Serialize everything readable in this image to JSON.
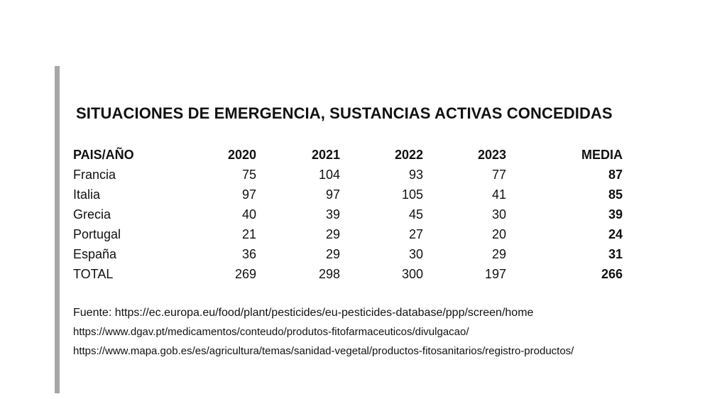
{
  "title": "SITUACIONES DE EMERGENCIA, SUSTANCIAS ACTIVAS CONCEDIDAS",
  "table": {
    "headers": [
      "PAIS/AÑO",
      "2020",
      "2021",
      "2022",
      "2023",
      "MEDIA"
    ],
    "rows": [
      [
        "Francia",
        "75",
        "104",
        "93",
        "77",
        "87"
      ],
      [
        "Italia",
        "97",
        "97",
        "105",
        "41",
        "85"
      ],
      [
        "Grecia",
        "40",
        "39",
        "45",
        "30",
        "39"
      ],
      [
        "Portugal",
        "21",
        "29",
        "27",
        "20",
        "24"
      ],
      [
        "España",
        "36",
        "29",
        "30",
        "29",
        "31"
      ],
      [
        "TOTAL",
        "269",
        "298",
        "300",
        "197",
        "266"
      ]
    ]
  },
  "sources": [
    "Fuente: https://ec.europa.eu/food/plant/pesticides/eu-pesticides-database/ppp/screen/home",
    "https://www.dgav.pt/medicamentos/conteudo/produtos-fitofarmaceuticos/divulgacao/",
    "https://www.mapa.gob.es/es/agricultura/temas/sanidad-vegetal/productos-fitosanitarios/registro-productos/"
  ]
}
